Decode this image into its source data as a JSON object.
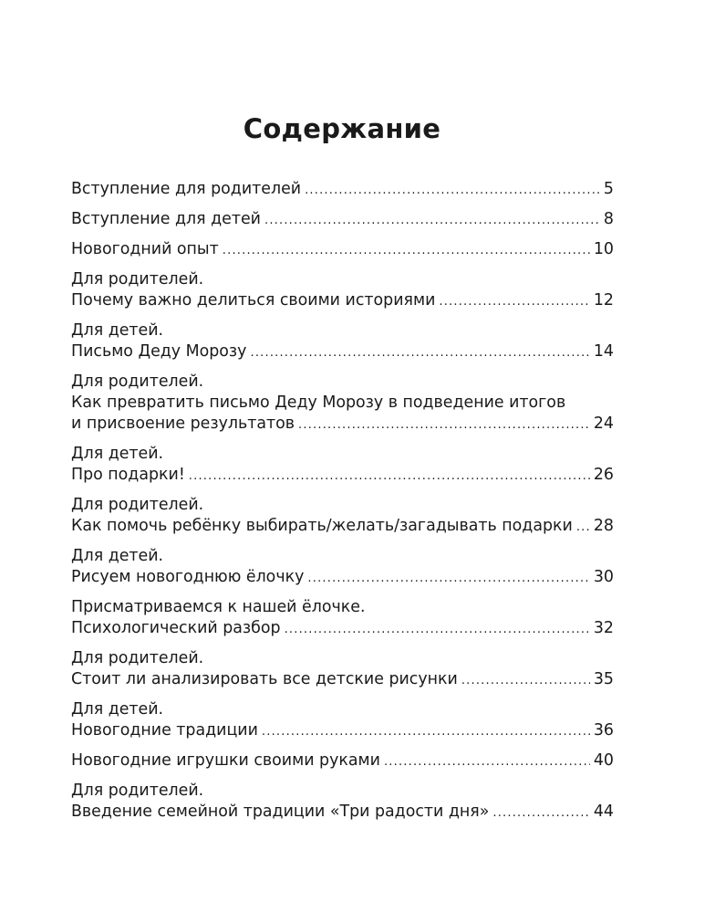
{
  "title": "Содержание",
  "entries": [
    {
      "lines": [
        "Вступление для родителей"
      ],
      "page": "5"
    },
    {
      "lines": [
        "Вступление для детей"
      ],
      "page": "8"
    },
    {
      "lines": [
        "Новогодний опыт"
      ],
      "page": "10"
    },
    {
      "lines": [
        "Для родителей.",
        "Почему важно делиться своими историями"
      ],
      "page": "12"
    },
    {
      "lines": [
        "Для детей.",
        "Письмо Деду Морозу"
      ],
      "page": "14"
    },
    {
      "lines": [
        "Для родителей.",
        "Как превратить письмо Деду Морозу в подведение итогов",
        "и присвоение результатов"
      ],
      "page": "24"
    },
    {
      "lines": [
        "Для детей.",
        "Про подарки!"
      ],
      "page": "26"
    },
    {
      "lines": [
        "Для родителей.",
        "Как помочь ребёнку выбирать/желать/загадывать подарки"
      ],
      "page": "28"
    },
    {
      "lines": [
        "Для детей.",
        "Рисуем новогоднюю ёлочку"
      ],
      "page": "30"
    },
    {
      "lines": [
        "Присматриваемся к нашей ёлочке.",
        "Психологический разбор"
      ],
      "page": "32"
    },
    {
      "lines": [
        "Для родителей.",
        "Стоит ли  анализировать все детские рисунки"
      ],
      "page": "35"
    },
    {
      "lines": [
        "Для детей.",
        "Новогодние традиции"
      ],
      "page": "36"
    },
    {
      "lines": [
        "Новогодние игрушки своими руками"
      ],
      "page": "40"
    },
    {
      "lines": [
        "Для родителей.",
        "Введение семейной традиции «Три радости дня»"
      ],
      "page": "44"
    }
  ]
}
